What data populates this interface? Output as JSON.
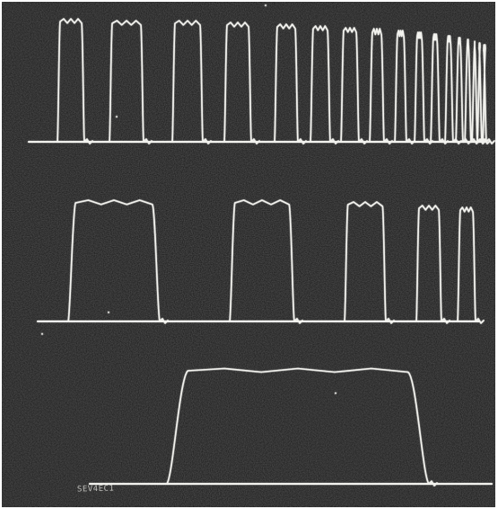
{
  "photo": {
    "kind": "oscilloscope photograph",
    "background_color": "#161616",
    "trace_color": "#f2f2ee",
    "traces": [
      {
        "row": "top",
        "pulse_count": 17
      },
      {
        "row": "middle",
        "pulse_count": 5
      },
      {
        "row": "bottom",
        "pulse_count": 1
      }
    ]
  },
  "negative_label": "SEV4EC1"
}
